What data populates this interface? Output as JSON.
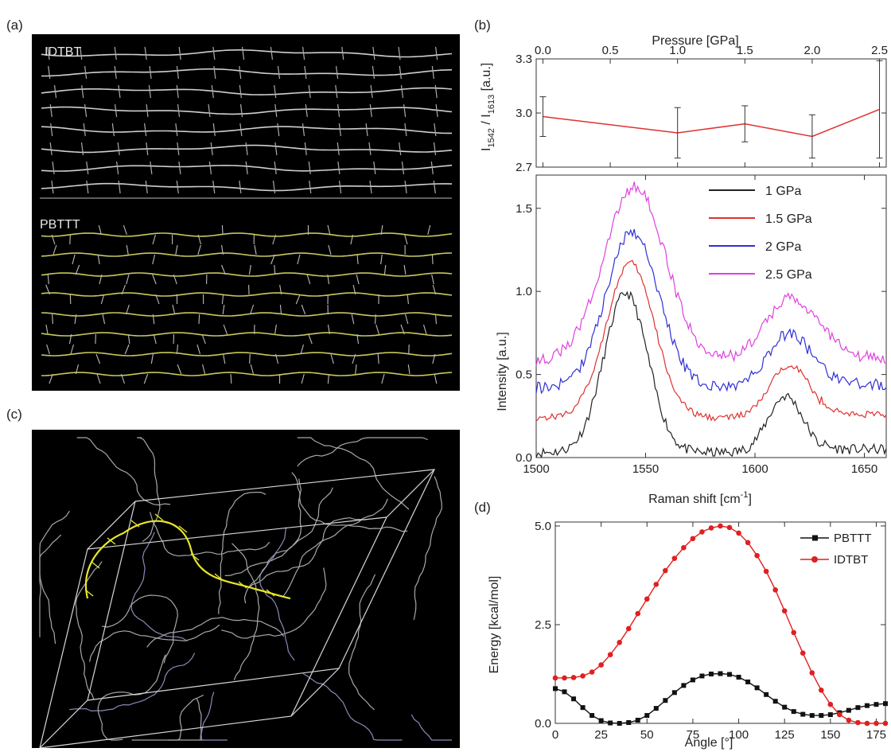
{
  "panel_a": {
    "label": "(a)",
    "top_name": "IDTBT",
    "bottom_name": "PBTTT"
  },
  "panel_c": {
    "label": "(c)"
  },
  "chart_data": [
    {
      "id": "b-top",
      "label": "(b)",
      "type": "line",
      "title": "",
      "xlabel": "Pressure [GPa]",
      "ylabel": "I1542 / I1613 [a.u.]",
      "ylabel_main": "I",
      "ylabel_sub1": "1542",
      "ylabel_mid": " / I",
      "ylabel_sub2": "1613",
      "ylabel_unit": " [a.u.]",
      "xlim": [
        -0.05,
        2.55
      ],
      "ylim": [
        2.7,
        3.3
      ],
      "xticks": [
        "0.0",
        "0.5",
        "1.0",
        "1.5",
        "2.0",
        "2.5"
      ],
      "xtick_values": [
        0,
        0.5,
        1,
        1.5,
        2,
        2.5
      ],
      "yticks": [
        "2.7",
        "3.0",
        "3.3"
      ],
      "ytick_values": [
        2.7,
        3.0,
        3.3
      ],
      "color": "#e03030",
      "x": [
        0.0,
        1.0,
        1.5,
        2.0,
        2.5
      ],
      "y": [
        2.98,
        2.89,
        2.94,
        2.87,
        3.02
      ],
      "err": [
        0.11,
        0.14,
        0.1,
        0.12,
        0.27
      ]
    },
    {
      "id": "b-bottom",
      "type": "line",
      "title": "",
      "xlabel_main": "Raman shift [cm",
      "xlabel_sup": "-1",
      "xlabel_end": "]",
      "ylabel": "Intensity [a.u.]",
      "xlim": [
        1500,
        1660
      ],
      "ylim": [
        0,
        1.7
      ],
      "xticks": [
        "1500",
        "1550",
        "1600",
        "1650"
      ],
      "xtick_values": [
        1500,
        1550,
        1600,
        1650
      ],
      "yticks": [
        "0.0",
        "0.5",
        "1.0",
        "1.5"
      ],
      "ytick_values": [
        0,
        0.5,
        1.0,
        1.5
      ],
      "legend": "top-right",
      "peaks_x": [
        1542,
        1613
      ],
      "series": [
        {
          "name": "1 GPa",
          "color": "#222222",
          "offset": 0.03,
          "a1": 0.96,
          "c1": 1541,
          "w1": 10,
          "a2": 0.34,
          "c2": 1614,
          "w2": 8,
          "noise": 0.03
        },
        {
          "name": "1.5 GPa",
          "color": "#e03030",
          "offset": 0.24,
          "a1": 0.93,
          "c1": 1543,
          "w1": 11,
          "a2": 0.32,
          "c2": 1616,
          "w2": 9,
          "noise": 0.02
        },
        {
          "name": "2 GPa",
          "color": "#2f2fd6",
          "offset": 0.42,
          "a1": 0.94,
          "c1": 1544,
          "w1": 12,
          "a2": 0.33,
          "c2": 1616,
          "w2": 10,
          "noise": 0.035
        },
        {
          "name": "2.5 GPa",
          "color": "#e040e0",
          "offset": 0.58,
          "a1": 1.05,
          "c1": 1545,
          "w1": 14,
          "a2": 0.38,
          "c2": 1617,
          "w2": 12,
          "noise": 0.035
        }
      ]
    },
    {
      "id": "d",
      "label": "(d)",
      "type": "line",
      "title": "",
      "xlabel": "Angle [°]",
      "ylabel": "Energy [kcal/mol]",
      "xlim": [
        0,
        180
      ],
      "ylim": [
        0,
        5.1
      ],
      "xticks": [
        "0",
        "25",
        "50",
        "75",
        "100",
        "125",
        "150",
        "175"
      ],
      "xtick_values": [
        0,
        25,
        50,
        75,
        100,
        125,
        150,
        175
      ],
      "yticks": [
        "0.0",
        "2.5",
        "5.0"
      ],
      "ytick_values": [
        0,
        2.5,
        5.0
      ],
      "legend": "top-right",
      "x": [
        0,
        5,
        10,
        15,
        20,
        25,
        30,
        35,
        40,
        45,
        50,
        55,
        60,
        65,
        70,
        75,
        80,
        85,
        90,
        95,
        100,
        105,
        110,
        115,
        120,
        125,
        130,
        135,
        140,
        145,
        150,
        155,
        160,
        165,
        170,
        175,
        180
      ],
      "series": [
        {
          "name": "PBTTT",
          "color": "#111111",
          "marker": "square",
          "y": [
            0.88,
            0.8,
            0.62,
            0.4,
            0.2,
            0.07,
            0.01,
            0.0,
            0.02,
            0.08,
            0.2,
            0.38,
            0.58,
            0.78,
            0.96,
            1.1,
            1.2,
            1.25,
            1.26,
            1.24,
            1.17,
            1.05,
            0.9,
            0.73,
            0.56,
            0.41,
            0.3,
            0.23,
            0.2,
            0.2,
            0.22,
            0.27,
            0.33,
            0.4,
            0.45,
            0.48,
            0.5
          ]
        },
        {
          "name": "IDTBT",
          "color": "#e02020",
          "marker": "circle",
          "y": [
            1.15,
            1.15,
            1.16,
            1.2,
            1.3,
            1.48,
            1.74,
            2.05,
            2.4,
            2.78,
            3.15,
            3.52,
            3.87,
            4.18,
            4.45,
            4.68,
            4.85,
            4.95,
            5.0,
            4.96,
            4.82,
            4.58,
            4.25,
            3.85,
            3.38,
            2.85,
            2.3,
            1.78,
            1.28,
            0.84,
            0.48,
            0.22,
            0.08,
            0.02,
            0.0,
            0.0,
            0.0
          ]
        }
      ]
    }
  ]
}
